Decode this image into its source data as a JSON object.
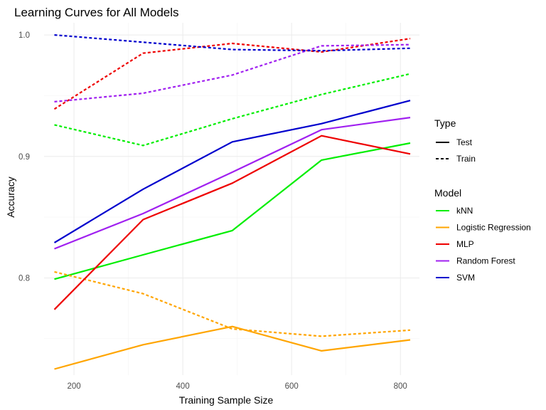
{
  "chart_data": {
    "type": "line",
    "title": "Learning Curves for All Models",
    "xlabel": "Training Sample Size",
    "ylabel": "Accuracy",
    "xlim": [
      145,
      835
    ],
    "ylim": [
      0.72,
      1.01
    ],
    "x_ticks": [
      200,
      400,
      600,
      800
    ],
    "y_ticks": [
      0.8,
      0.9,
      1.0
    ],
    "y_tick_labels": [
      "0.8",
      "0.9",
      "1.0"
    ],
    "x": [
      164,
      327,
      491,
      655,
      818
    ],
    "grid": true,
    "legend_placement": "right",
    "legend_type_title": "Type",
    "legend_model_title": "Model",
    "types": [
      {
        "name": "Test",
        "dash": "solid"
      },
      {
        "name": "Train",
        "dash": "dashed"
      }
    ],
    "series": [
      {
        "model": "kNN",
        "color": "#00ee00",
        "type": "Test",
        "values": [
          0.799,
          0.819,
          0.839,
          0.897,
          0.911
        ]
      },
      {
        "model": "kNN",
        "color": "#00ee00",
        "type": "Train",
        "values": [
          0.926,
          0.909,
          0.931,
          0.951,
          0.968
        ]
      },
      {
        "model": "Logistic Regression",
        "color": "#ffa500",
        "type": "Test",
        "values": [
          0.725,
          0.745,
          0.76,
          0.74,
          0.749
        ]
      },
      {
        "model": "Logistic Regression",
        "color": "#ffa500",
        "type": "Train",
        "values": [
          0.805,
          0.787,
          0.758,
          0.752,
          0.757
        ]
      },
      {
        "model": "MLP",
        "color": "#ee0000",
        "type": "Test",
        "values": [
          0.774,
          0.848,
          0.878,
          0.917,
          0.902
        ]
      },
      {
        "model": "MLP",
        "color": "#ee0000",
        "type": "Train",
        "values": [
          0.939,
          0.985,
          0.993,
          0.986,
          0.997
        ]
      },
      {
        "model": "Random Forest",
        "color": "#a020f0",
        "type": "Test",
        "values": [
          0.824,
          0.853,
          0.887,
          0.922,
          0.932
        ]
      },
      {
        "model": "Random Forest",
        "color": "#a020f0",
        "type": "Train",
        "values": [
          0.945,
          0.952,
          0.967,
          0.991,
          0.992
        ]
      },
      {
        "model": "SVM",
        "color": "#0000cd",
        "type": "Test",
        "values": [
          0.829,
          0.873,
          0.912,
          0.927,
          0.946
        ]
      },
      {
        "model": "SVM",
        "color": "#0000cd",
        "type": "Train",
        "values": [
          1.0,
          0.994,
          0.988,
          0.987,
          0.989
        ]
      }
    ],
    "models": [
      {
        "name": "kNN",
        "color": "#00ee00"
      },
      {
        "name": "Logistic Regression",
        "color": "#ffa500"
      },
      {
        "name": "MLP",
        "color": "#ee0000"
      },
      {
        "name": "Random Forest",
        "color": "#a020f0"
      },
      {
        "name": "SVM",
        "color": "#0000cd"
      }
    ]
  }
}
